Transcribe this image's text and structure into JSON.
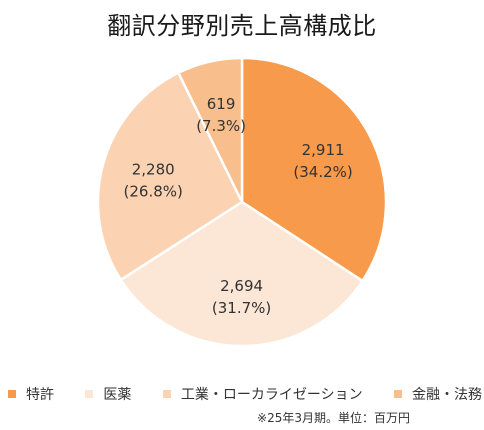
{
  "chart_data": {
    "type": "pie",
    "title": "翻訳分野別売上高構成比",
    "unit": "百万円",
    "slices": [
      {
        "name": "特許",
        "value": 2911,
        "percent": "34.2%",
        "value_label": "2,911",
        "percent_label": "(34.2%)",
        "color": "#F79A4B"
      },
      {
        "name": "医薬",
        "value": 2694,
        "percent": "31.7%",
        "value_label": "2,694",
        "percent_label": "(31.7%)",
        "color": "#FCE6D6"
      },
      {
        "name": "工業・ローカライゼーション",
        "value": 2280,
        "percent": "26.8%",
        "value_label": "2,280",
        "percent_label": "(26.8%)",
        "color": "#FBD3B3"
      },
      {
        "name": "金融・法務",
        "value": 619,
        "percent": "7.3%",
        "value_label": "619",
        "percent_label": "(7.3%)",
        "color": "#F8BF8D"
      }
    ],
    "legend_position": "bottom",
    "start_angle_deg": 0,
    "direction": "clockwise",
    "footnote": "※25年3月期。単位：百万円"
  }
}
